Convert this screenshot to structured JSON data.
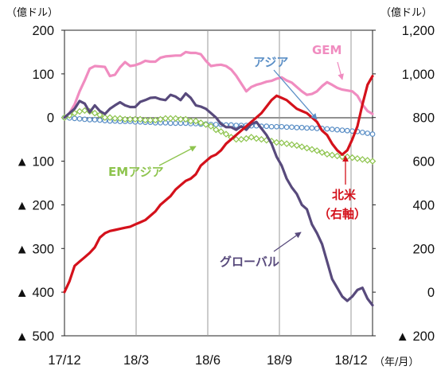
{
  "chart_data": {
    "type": "line",
    "left_unit": "（億ドル）",
    "right_unit": "（億ドル）",
    "x_unit": "（年/月）",
    "x_ticks": [
      "17/12",
      "18/3",
      "18/6",
      "18/9",
      "18/12"
    ],
    "left_axis": {
      "range": [
        -500,
        200
      ],
      "ticks": [
        200,
        100,
        0,
        -100,
        -200,
        -300,
        -400,
        -500
      ],
      "tick_labels": [
        "200",
        "100",
        "0",
        "▲ 100",
        "▲ 200",
        "▲ 300",
        "▲ 400",
        "▲ 500"
      ]
    },
    "right_axis": {
      "range": [
        -200,
        1200
      ],
      "ticks": [
        1200,
        1000,
        800,
        600,
        400,
        200,
        0,
        -200
      ],
      "tick_labels": [
        "1,200",
        "1,000",
        "800",
        "600",
        "400",
        "200",
        "0",
        "▲ 200"
      ]
    },
    "x_start": 0,
    "x_end": 61,
    "series": [
      {
        "name": "GEM",
        "axis": "left",
        "color": "#f08cc0",
        "values": [
          0,
          10,
          30,
          60,
          85,
          112,
          118,
          117,
          116,
          95,
          98,
          115,
          127,
          118,
          120,
          124,
          130,
          128,
          128,
          137,
          140,
          141,
          142,
          142,
          150,
          148,
          148,
          145,
          130,
          118,
          120,
          121,
          118,
          110,
          96,
          78,
          60,
          70,
          75,
          78,
          82,
          84,
          89,
          92,
          85,
          80,
          70,
          60,
          52,
          54,
          60,
          72,
          81,
          75,
          68,
          64,
          62,
          60,
          50,
          30,
          15,
          8
        ]
      },
      {
        "name": "アジア",
        "axis": "left",
        "color": "#5b8fc6",
        "values": [
          0,
          -1,
          -2,
          -3,
          -4,
          -5,
          -5,
          -6,
          -7,
          -8,
          -8,
          -9,
          -9,
          -9,
          -10,
          -10,
          -11,
          -11,
          -12,
          -12,
          -12,
          -13,
          -13,
          -13,
          -13,
          -14,
          -14,
          -15,
          -15,
          -16,
          -16,
          -16,
          -17,
          -17,
          -18,
          -18,
          -18,
          -19,
          -19,
          -20,
          -20,
          -21,
          -21,
          -21,
          -22,
          -22,
          -23,
          -23,
          -24,
          -24,
          -25,
          -25,
          -26,
          -27,
          -28,
          -29,
          -30,
          -31,
          -32,
          -34,
          -36,
          -38
        ]
      },
      {
        "name": "EMアジア",
        "axis": "left",
        "color": "#8ec44e",
        "values": [
          0,
          5,
          10,
          14,
          16,
          14,
          10,
          6,
          0,
          0,
          -2,
          -2,
          -4,
          -4,
          -4,
          -4,
          -6,
          -6,
          -6,
          -4,
          -2,
          -2,
          -2,
          -4,
          -4,
          -8,
          -8,
          -12,
          -16,
          -20,
          -28,
          -32,
          -38,
          -45,
          -50,
          -50,
          -48,
          -45,
          -48,
          -50,
          -52,
          -54,
          -57,
          -58,
          -60,
          -62,
          -64,
          -67,
          -70,
          -73,
          -76,
          -80,
          -84,
          -86,
          -88,
          -90,
          -90,
          -92,
          -94,
          -96,
          -98,
          -100
        ]
      },
      {
        "name": "グローバル",
        "axis": "left",
        "color": "#584a7c",
        "values": [
          0,
          10,
          20,
          38,
          32,
          12,
          28,
          15,
          8,
          20,
          28,
          35,
          28,
          24,
          24,
          36,
          40,
          45,
          46,
          42,
          40,
          52,
          48,
          40,
          55,
          45,
          28,
          25,
          20,
          10,
          0,
          -15,
          -22,
          -22,
          -28,
          -20,
          -28,
          -15,
          -10,
          -25,
          -40,
          -60,
          -90,
          -110,
          -140,
          -160,
          -175,
          -200,
          -210,
          -245,
          -265,
          -290,
          -330,
          -370,
          -390,
          -410,
          -420,
          -410,
          -395,
          -390,
          -415,
          -430
        ]
      },
      {
        "name": "北米（右軸）",
        "axis": "right",
        "color": "#d4111b",
        "values": [
          0,
          50,
          120,
          140,
          160,
          180,
          205,
          250,
          270,
          280,
          285,
          290,
          295,
          300,
          310,
          320,
          330,
          350,
          370,
          400,
          420,
          440,
          470,
          490,
          510,
          520,
          540,
          580,
          600,
          620,
          630,
          650,
          680,
          700,
          720,
          740,
          760,
          780,
          800,
          820,
          850,
          880,
          900,
          890,
          880,
          860,
          840,
          830,
          820,
          800,
          780,
          740,
          720,
          680,
          650,
          630,
          650,
          700,
          760,
          860,
          950,
          990
        ]
      }
    ],
    "annotations": [
      {
        "text": "GEM",
        "color": "#f08cc0"
      },
      {
        "text": "アジア",
        "color": "#5b8fc6"
      },
      {
        "text": "EMアジア",
        "color": "#8ec44e"
      },
      {
        "text": "北米",
        "color": "#d4111b"
      },
      {
        "text": "（右軸）",
        "color": "#d4111b"
      },
      {
        "text": "グローバル",
        "color": "#584a7c"
      }
    ]
  }
}
